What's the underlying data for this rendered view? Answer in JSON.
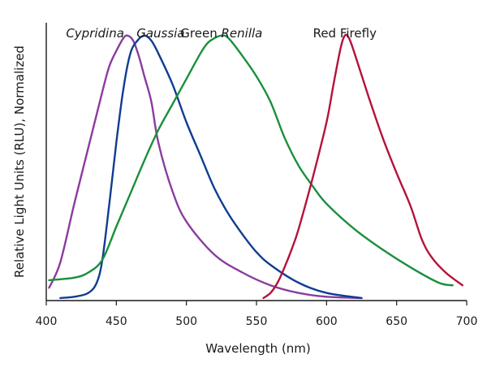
{
  "chart_data": {
    "type": "line",
    "xlabel": "Wavelength (nm)",
    "ylabel": "Relative Light Units (RLU), Normalized",
    "xlim": [
      400,
      700
    ],
    "ylim": [
      0,
      1.1
    ],
    "xticks": [
      400,
      450,
      500,
      550,
      600,
      650,
      700
    ],
    "grid": false,
    "legend": "none",
    "series": [
      {
        "name": "Cypridina",
        "label_parts": [
          {
            "text": "Cypridina",
            "italic": true
          }
        ],
        "color": "#8a3c9e",
        "x": [
          402,
          410,
          420,
          430,
          440,
          445,
          450,
          455,
          458,
          462,
          466,
          470,
          475,
          480,
          490,
          500,
          520,
          540,
          560,
          580,
          600,
          625
        ],
        "y": [
          0.05,
          0.15,
          0.38,
          0.6,
          0.82,
          0.92,
          0.98,
          1.03,
          1.04,
          1.02,
          0.96,
          0.88,
          0.78,
          0.62,
          0.43,
          0.31,
          0.18,
          0.11,
          0.06,
          0.03,
          0.015,
          0.01
        ]
      },
      {
        "name": "Gaussia",
        "label_parts": [
          {
            "text": "Gaussia",
            "italic": true
          }
        ],
        "color": "#0f3d91",
        "x": [
          410,
          420,
          430,
          436,
          440,
          445,
          450,
          455,
          460,
          465,
          470,
          475,
          480,
          490,
          500,
          510,
          520,
          530,
          540,
          550,
          560,
          580,
          600,
          625
        ],
        "y": [
          0.01,
          0.015,
          0.03,
          0.07,
          0.16,
          0.38,
          0.62,
          0.83,
          0.97,
          1.02,
          1.04,
          1.02,
          0.97,
          0.85,
          0.7,
          0.57,
          0.44,
          0.34,
          0.26,
          0.19,
          0.14,
          0.07,
          0.03,
          0.01
        ]
      },
      {
        "name": "Green Renilla",
        "label_parts": [
          {
            "text": "Green ",
            "italic": false
          },
          {
            "text": "Renilla",
            "italic": true
          }
        ],
        "color": "#1a8f3c",
        "x": [
          402,
          420,
          430,
          440,
          450,
          460,
          470,
          480,
          490,
          500,
          510,
          515,
          520,
          525,
          530,
          540,
          550,
          560,
          570,
          580,
          590,
          600,
          620,
          640,
          660,
          680,
          690
        ],
        "y": [
          0.08,
          0.09,
          0.11,
          0.16,
          0.29,
          0.42,
          0.55,
          0.67,
          0.77,
          0.87,
          0.97,
          1.01,
          1.03,
          1.04,
          1.03,
          0.96,
          0.88,
          0.78,
          0.64,
          0.53,
          0.45,
          0.38,
          0.28,
          0.2,
          0.13,
          0.07,
          0.06
        ]
      },
      {
        "name": "Red Firefly",
        "label_parts": [
          {
            "text": "Red Firefly",
            "italic": false
          }
        ],
        "color": "#b5123a",
        "x": [
          555,
          560,
          565,
          570,
          575,
          580,
          590,
          600,
          605,
          610,
          613,
          616,
          620,
          630,
          640,
          650,
          660,
          668,
          675,
          685,
          697
        ],
        "y": [
          0.01,
          0.03,
          0.07,
          0.13,
          0.2,
          0.28,
          0.48,
          0.7,
          0.85,
          0.99,
          1.04,
          1.03,
          0.97,
          0.8,
          0.64,
          0.5,
          0.37,
          0.24,
          0.17,
          0.11,
          0.06
        ]
      }
    ]
  }
}
